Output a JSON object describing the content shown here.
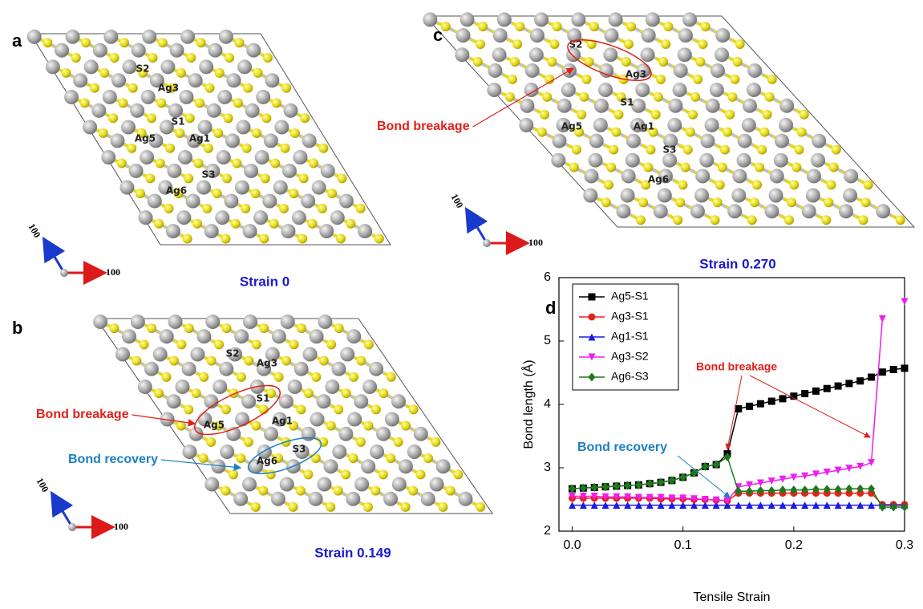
{
  "panels": [
    {
      "letter": "a",
      "strain": "Strain 0",
      "axis_labels": [
        "100",
        "100"
      ],
      "atoms": [
        "S2",
        "Ag3",
        "S1",
        "Ag5",
        "Ag1",
        "S3",
        "Ag6"
      ]
    },
    {
      "letter": "b",
      "strain": "Strain 0.149",
      "axis_labels": [
        "100",
        "100"
      ],
      "atoms": [
        "S2",
        "Ag3",
        "S1",
        "Ag5",
        "Ag1",
        "Ag6",
        "S3"
      ],
      "annotations": [
        "Bond breakage",
        "Bond recovery"
      ]
    },
    {
      "letter": "c",
      "strain": "Strain 0.270",
      "axis_labels": [
        "100",
        "100"
      ],
      "atoms": [
        "S2",
        "Ag3",
        "S1",
        "Ag5",
        "Ag1",
        "S3",
        "Ag6"
      ],
      "annotations": [
        "Bond breakage"
      ]
    }
  ],
  "chart_data": {
    "type": "line",
    "letter": "d",
    "x_label": "Tensile Strain",
    "y_label": "Bond length (Å)",
    "x": [
      0,
      0.01,
      0.02,
      0.03,
      0.04,
      0.05,
      0.06,
      0.07,
      0.08,
      0.09,
      0.1,
      0.11,
      0.12,
      0.13,
      0.14,
      0.15,
      0.16,
      0.17,
      0.18,
      0.19,
      0.2,
      0.21,
      0.22,
      0.23,
      0.24,
      0.25,
      0.26,
      0.27,
      0.28,
      0.29,
      0.3
    ],
    "xlim": [
      -0.012,
      0.3
    ],
    "xticks": [
      {
        "value": 0,
        "label": "0.0"
      },
      0.1,
      0.2,
      0.3
    ],
    "ylim": [
      2,
      6
    ],
    "yticks": [
      2,
      3,
      4,
      5,
      6
    ],
    "series": [
      {
        "name": "Ag5-S1",
        "color": "#000000",
        "marker": "square",
        "values": [
          2.67,
          2.68,
          2.69,
          2.7,
          2.71,
          2.72,
          2.73,
          2.75,
          2.77,
          2.8,
          2.85,
          2.92,
          3.02,
          3.05,
          3.22,
          3.93,
          3.97,
          4.01,
          4.05,
          4.09,
          4.13,
          4.17,
          4.21,
          4.25,
          4.29,
          4.33,
          4.37,
          4.43,
          4.51,
          4.55,
          4.57
        ]
      },
      {
        "name": "Ag3-S1",
        "color": "#e8201a",
        "marker": "circle",
        "values": [
          2.52,
          2.52,
          2.52,
          2.52,
          2.52,
          2.52,
          2.52,
          2.52,
          2.51,
          2.51,
          2.51,
          2.5,
          2.5,
          2.49,
          2.48,
          2.6,
          2.6,
          2.6,
          2.6,
          2.6,
          2.6,
          2.6,
          2.6,
          2.6,
          2.6,
          2.6,
          2.6,
          2.6,
          2.42,
          2.42,
          2.42
        ]
      },
      {
        "name": "Ag1-S1",
        "color": "#1a1ae8",
        "marker": "triangle-up",
        "values": [
          2.41,
          2.41,
          2.41,
          2.41,
          2.41,
          2.41,
          2.41,
          2.41,
          2.41,
          2.41,
          2.41,
          2.41,
          2.41,
          2.41,
          2.41,
          2.41,
          2.41,
          2.41,
          2.41,
          2.41,
          2.41,
          2.41,
          2.41,
          2.41,
          2.41,
          2.41,
          2.41,
          2.41,
          2.41,
          2.41,
          2.41
        ]
      },
      {
        "name": "Ag3-S2",
        "color": "#f01cf0",
        "marker": "triangle-down",
        "values": [
          2.55,
          2.55,
          2.55,
          2.54,
          2.54,
          2.54,
          2.53,
          2.53,
          2.53,
          2.52,
          2.52,
          2.51,
          2.5,
          2.49,
          2.48,
          2.7,
          2.73,
          2.76,
          2.79,
          2.82,
          2.85,
          2.87,
          2.9,
          2.93,
          2.96,
          2.99,
          3.02,
          3.08,
          5.35,
          null,
          5.62
        ]
      },
      {
        "name": "Ag6-S3",
        "color": "#1c7a1c",
        "marker": "diamond",
        "values": [
          2.67,
          2.68,
          2.69,
          2.7,
          2.71,
          2.72,
          2.73,
          2.75,
          2.77,
          2.8,
          2.85,
          2.92,
          3.02,
          3.05,
          3.17,
          2.63,
          2.63,
          2.64,
          2.64,
          2.65,
          2.65,
          2.65,
          2.66,
          2.66,
          2.66,
          2.67,
          2.67,
          2.67,
          2.38,
          2.38,
          2.38
        ]
      }
    ],
    "annotations": [
      "Bond breakage",
      "Bond recovery"
    ]
  }
}
